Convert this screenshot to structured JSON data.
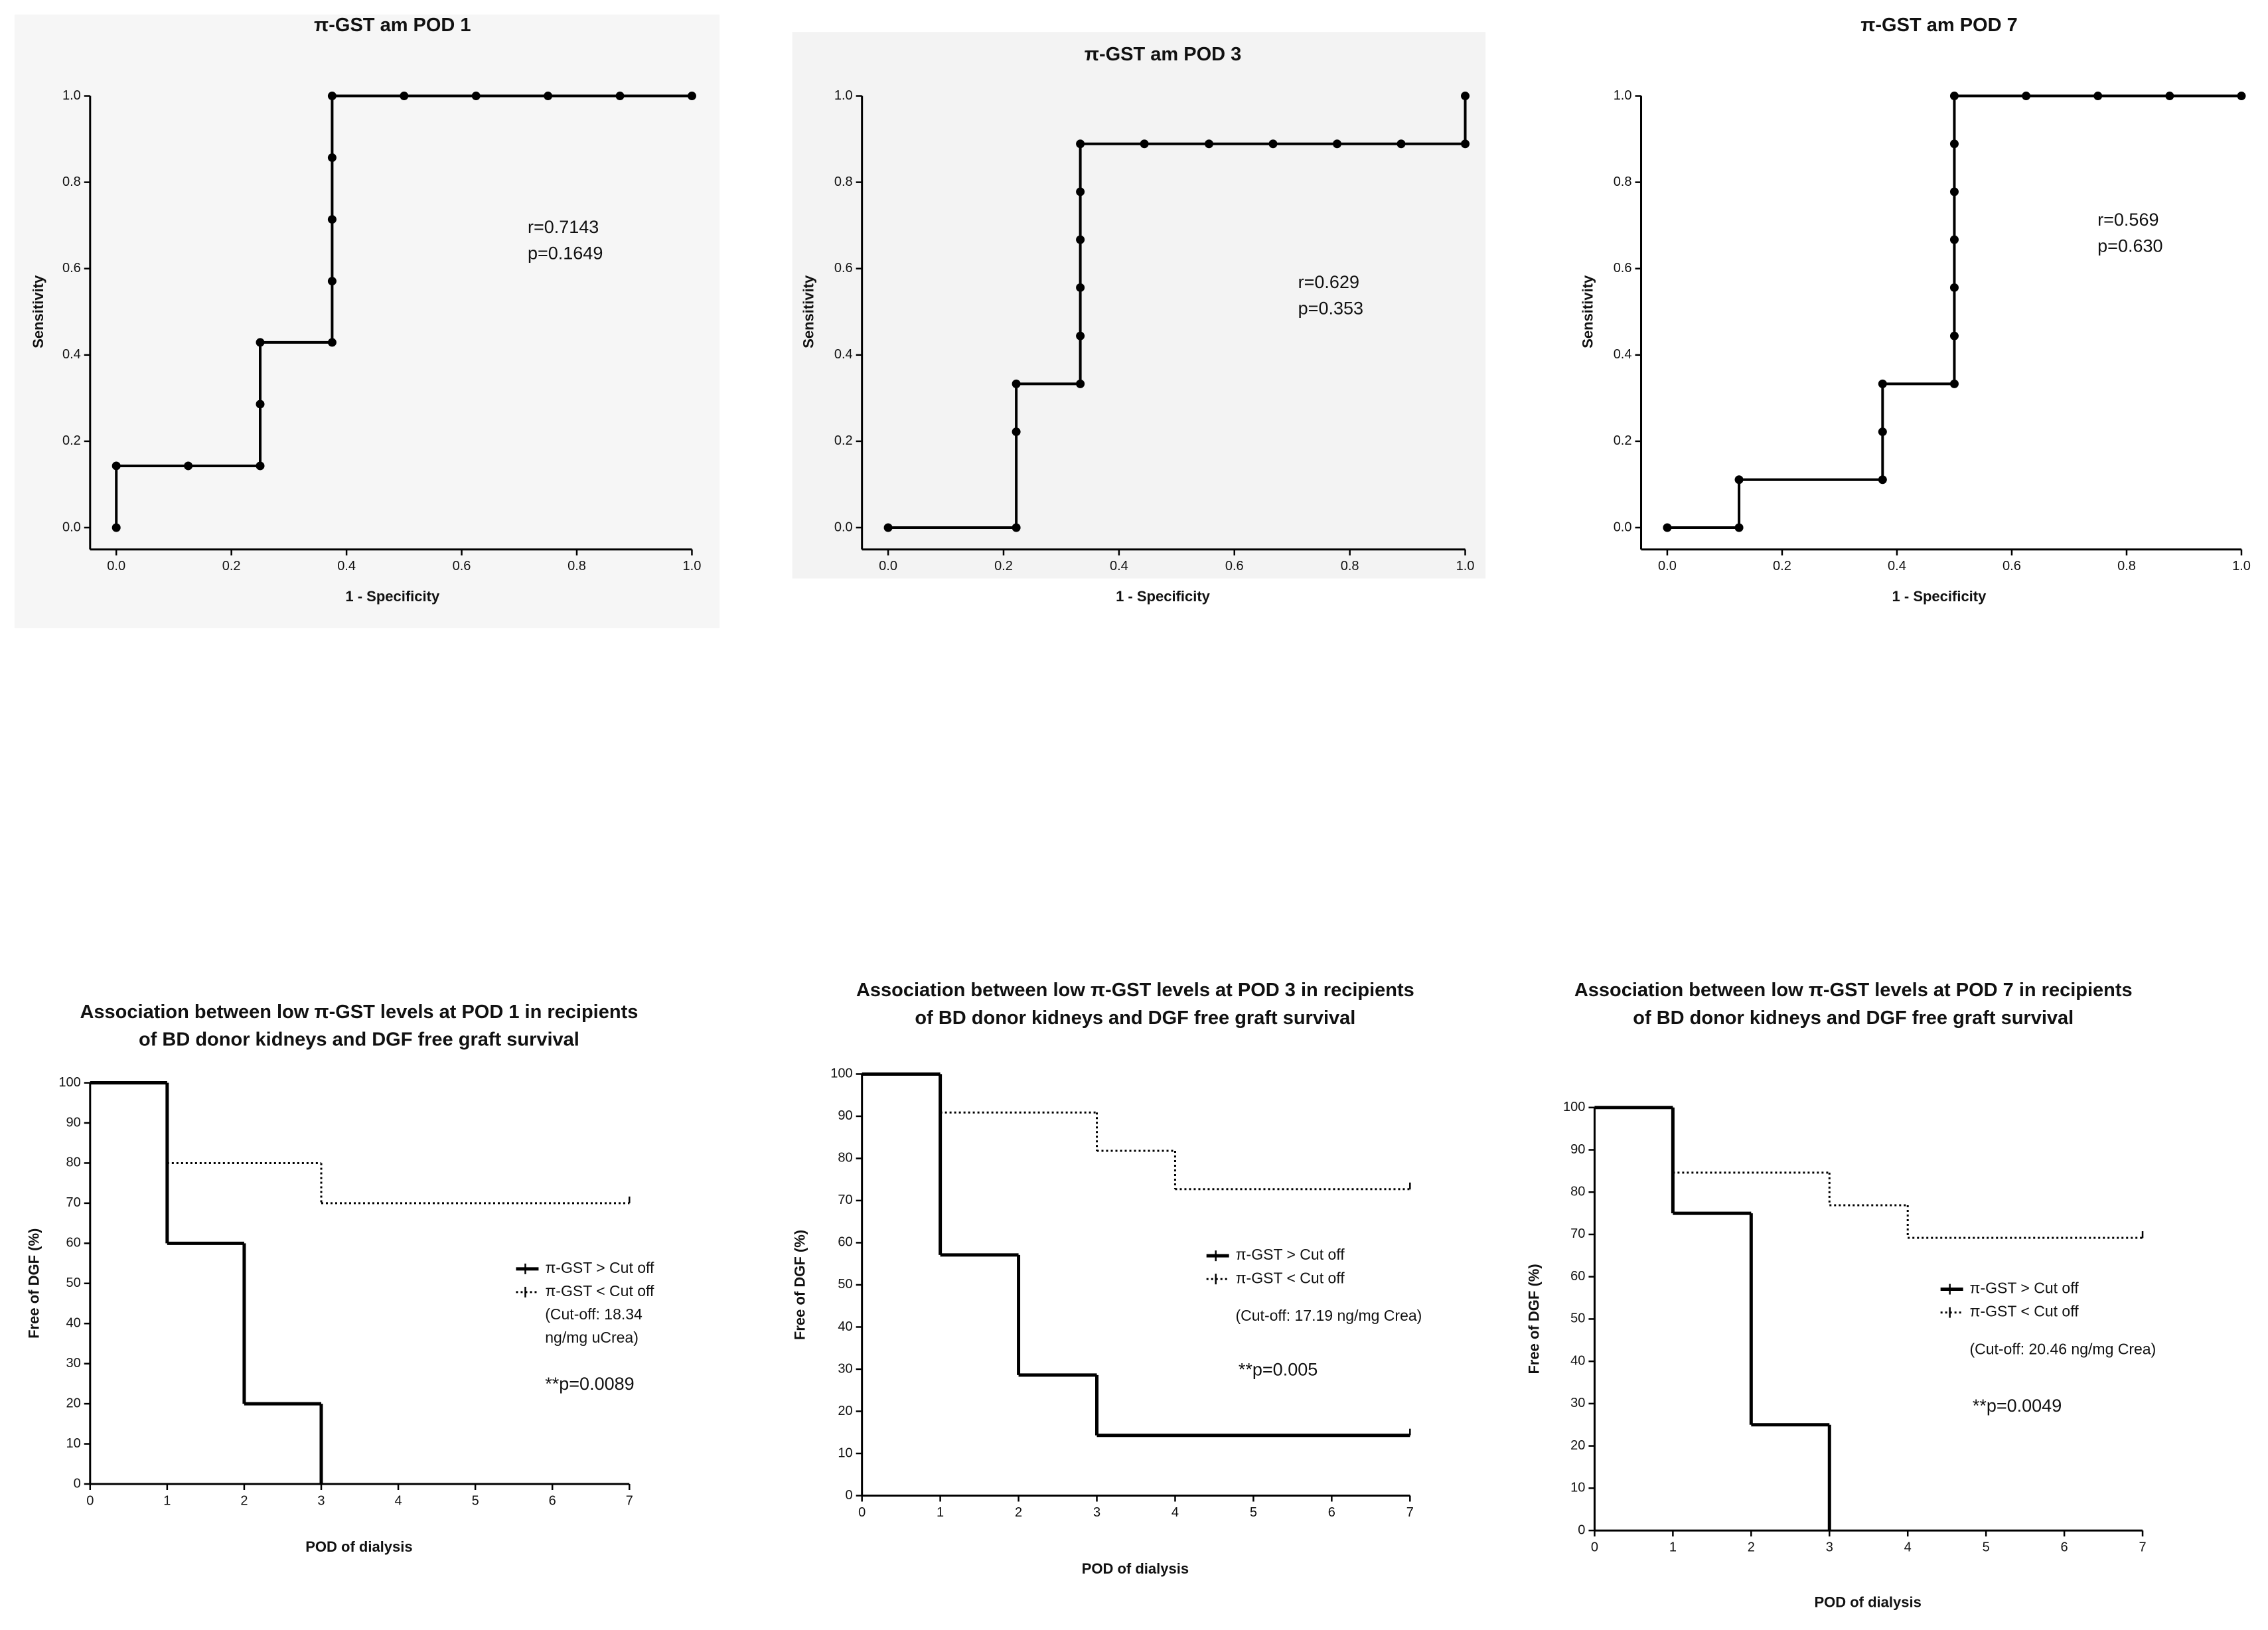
{
  "chart_data": [
    {
      "type": "line",
      "title": "π-GST am POD 1",
      "x_label": "1 - Specificity",
      "y_label": "Sensitivity",
      "x": [
        0,
        0,
        0.125,
        0.25,
        0.25,
        0.25,
        0.375,
        0.375,
        0.375,
        0.375,
        0.375,
        0.5,
        0.625,
        0.75,
        0.875,
        1
      ],
      "values": [
        0,
        0.143,
        0.143,
        0.143,
        0.286,
        0.429,
        0.429,
        0.571,
        0.714,
        0.857,
        1,
        1,
        1,
        1,
        1,
        1
      ],
      "color": "#000000",
      "markers": true,
      "plot_background": "#f6f6f6",
      "xlim": [
        0,
        1
      ],
      "ylim": [
        0,
        1
      ],
      "xticks": [
        {
          "value": 0,
          "label": "0.0"
        },
        0.2,
        0.4,
        0.6,
        0.8,
        {
          "value": 1,
          "label": "1.0"
        }
      ],
      "yticks": [
        {
          "value": 0,
          "label": "0.0"
        },
        0.2,
        0.4,
        0.6,
        0.8,
        {
          "value": 1,
          "label": "1.0"
        }
      ],
      "annotations": [
        "r=0.7143",
        "p=0.1649"
      ]
    },
    {
      "type": "line",
      "title": "π-GST am POD 3",
      "x_label": "1 - Specificity",
      "y_label": "Sensitivity",
      "x": [
        0,
        0.222,
        0.222,
        0.222,
        0.333,
        0.333,
        0.333,
        0.333,
        0.333,
        0.333,
        0.444,
        0.556,
        0.667,
        0.778,
        0.889,
        1,
        1
      ],
      "values": [
        0,
        0,
        0.222,
        0.333,
        0.333,
        0.444,
        0.556,
        0.667,
        0.778,
        0.889,
        0.889,
        0.889,
        0.889,
        0.889,
        0.889,
        0.889,
        1
      ],
      "color": "#000000",
      "markers": true,
      "plot_background": "#f3f3f3",
      "xlim": [
        0,
        1
      ],
      "ylim": [
        0,
        1
      ],
      "xticks": [
        {
          "value": 0,
          "label": "0.0"
        },
        0.2,
        0.4,
        0.6,
        0.8,
        {
          "value": 1,
          "label": "1.0"
        }
      ],
      "yticks": [
        {
          "value": 0,
          "label": "0.0"
        },
        0.2,
        0.4,
        0.6,
        0.8,
        {
          "value": 1,
          "label": "1.0"
        }
      ],
      "annotations": [
        "r=0.629",
        "p=0.353"
      ]
    },
    {
      "type": "line",
      "title": "π-GST am POD 7",
      "x_label": "1 - Specificity",
      "y_label": "Sensitivity",
      "x": [
        0,
        0.125,
        0.125,
        0.375,
        0.375,
        0.375,
        0.5,
        0.5,
        0.5,
        0.5,
        0.5,
        0.5,
        0.5,
        0.625,
        0.75,
        0.875,
        1
      ],
      "values": [
        0,
        0,
        0.111,
        0.111,
        0.222,
        0.333,
        0.333,
        0.444,
        0.556,
        0.667,
        0.778,
        0.889,
        1,
        1,
        1,
        1,
        1
      ],
      "color": "#000000",
      "markers": true,
      "xlim": [
        0,
        1
      ],
      "ylim": [
        0,
        1
      ],
      "xticks": [
        {
          "value": 0,
          "label": "0.0"
        },
        0.2,
        0.4,
        0.6,
        0.8,
        {
          "value": 1,
          "label": "1.0"
        }
      ],
      "yticks": [
        {
          "value": 0,
          "label": "0.0"
        },
        0.2,
        0.4,
        0.6,
        0.8,
        {
          "value": 1,
          "label": "1.0"
        }
      ],
      "annotations": [
        "r=0.569",
        "p=0.630"
      ]
    },
    {
      "type": "step",
      "title": [
        "Association between low π-GST levels at POD 1 in recipients",
        "of BD donor kidneys and DGF free graft survival"
      ],
      "x_label": "POD of dialysis",
      "y_label": "Free of DGF (%)",
      "series": [
        {
          "name": "π-GST > Cut off",
          "color": "#000000",
          "line_style": "solid",
          "x": [
            0,
            1,
            2,
            3
          ],
          "values": [
            100,
            60,
            20,
            0
          ]
        },
        {
          "name": "π-GST < Cut off",
          "color": "#000000",
          "line_style": "dotted",
          "x": [
            0,
            1,
            3,
            7
          ],
          "values": [
            100,
            80,
            70,
            70
          ]
        }
      ],
      "legend_note": [
        "(Cut-off: 18.34",
        "ng/mg uCrea)"
      ],
      "annotation": "**p=0.0089",
      "xlim": [
        0,
        7
      ],
      "ylim": [
        0,
        100
      ],
      "xticks": [
        0,
        1,
        2,
        3,
        4,
        5,
        6,
        7
      ],
      "yticks": [
        0,
        10,
        20,
        30,
        40,
        50,
        60,
        70,
        80,
        90,
        100
      ]
    },
    {
      "type": "step",
      "title": [
        "Association between low π-GST levels at POD 3 in recipients",
        "of BD donor kidneys and DGF free graft survival"
      ],
      "x_label": "POD of dialysis",
      "y_label": "Free of DGF (%)",
      "series": [
        {
          "name": "π-GST > Cut off",
          "color": "#000000",
          "line_style": "solid",
          "x": [
            0,
            1,
            2,
            3,
            7
          ],
          "values": [
            100,
            57.1,
            28.6,
            14.3,
            14.3
          ]
        },
        {
          "name": "π-GST < Cut off",
          "color": "#000000",
          "line_style": "dotted",
          "x": [
            0,
            1,
            3,
            4,
            7
          ],
          "values": [
            100,
            90.9,
            81.8,
            72.7,
            72.7
          ]
        }
      ],
      "legend_note": [
        "(Cut-off: 17.19 ng/mg Crea)"
      ],
      "annotation": "**p=0.005",
      "xlim": [
        0,
        7
      ],
      "ylim": [
        0,
        100
      ],
      "xticks": [
        0,
        1,
        2,
        3,
        4,
        5,
        6,
        7
      ],
      "yticks": [
        0,
        10,
        20,
        30,
        40,
        50,
        60,
        70,
        80,
        90,
        100
      ]
    },
    {
      "type": "step",
      "title": [
        "Association between low π-GST levels at POD 7 in recipients",
        "of BD donor kidneys and DGF free graft survival"
      ],
      "x_label": "POD of dialysis",
      "y_label": "Free of DGF (%)",
      "series": [
        {
          "name": "π-GST > Cut off",
          "color": "#000000",
          "line_style": "solid",
          "x": [
            0,
            1,
            2,
            3
          ],
          "values": [
            100,
            75,
            25,
            0
          ]
        },
        {
          "name": "π-GST < Cut off",
          "color": "#000000",
          "line_style": "dotted",
          "x": [
            0,
            1,
            3,
            4,
            7
          ],
          "values": [
            100,
            84.6,
            76.9,
            69.2,
            69.2
          ]
        }
      ],
      "legend_note": [
        "(Cut-off: 20.46 ng/mg Crea)"
      ],
      "annotation": "**p=0.0049",
      "xlim": [
        0,
        7
      ],
      "ylim": [
        0,
        100
      ],
      "xticks": [
        0,
        1,
        2,
        3,
        4,
        5,
        6,
        7
      ],
      "yticks": [
        0,
        10,
        20,
        30,
        40,
        50,
        60,
        70,
        80,
        90,
        100
      ]
    }
  ]
}
